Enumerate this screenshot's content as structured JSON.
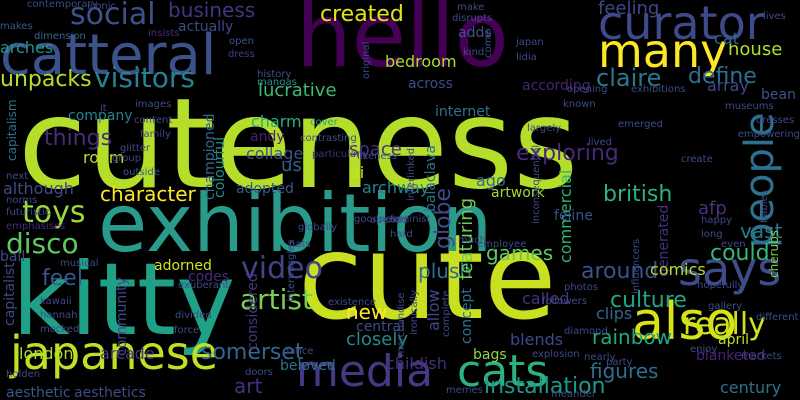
{
  "background": "#000000",
  "palette": [
    "#440154",
    "#3b528b",
    "#21918c",
    "#5ec962",
    "#fde725"
  ],
  "words": [
    {
      "text": "cuteness",
      "color": "#b5de2b"
    },
    {
      "text": "cute",
      "color": "#c8e020"
    },
    {
      "text": "kitty",
      "color": "#1fa187"
    },
    {
      "text": "hello",
      "color": "#440154"
    },
    {
      "text": "exhibition",
      "color": "#2a9b8a"
    },
    {
      "text": "catteral",
      "color": "#3b528b"
    },
    {
      "text": "japanese",
      "color": "#c2df23"
    },
    {
      "text": "many",
      "color": "#fde725"
    },
    {
      "text": "curator",
      "color": "#3e4a89"
    },
    {
      "text": "media",
      "color": "#443983"
    },
    {
      "text": "people",
      "color": "#2c728e"
    },
    {
      "text": "cats",
      "color": "#2db27d"
    },
    {
      "text": "says",
      "color": "#3e4c8a"
    },
    {
      "text": "also",
      "color": "#d8e219"
    },
    {
      "text": "really",
      "color": "#cde11d"
    },
    {
      "text": "video",
      "color": "#414487"
    },
    {
      "text": "toys",
      "color": "#9dd93b"
    },
    {
      "text": "artist",
      "color": "#7ad151"
    },
    {
      "text": "social",
      "color": "#3b528b"
    },
    {
      "text": "visitors",
      "color": "#26828e"
    },
    {
      "text": "created",
      "color": "#e5e419"
    },
    {
      "text": "claire",
      "color": "#2a788e"
    },
    {
      "text": "culture",
      "color": "#21a685"
    },
    {
      "text": "disco",
      "color": "#5ec962"
    },
    {
      "text": "british",
      "color": "#2db27d"
    },
    {
      "text": "could",
      "color": "#35b779"
    },
    {
      "text": "exploring",
      "color": "#482979"
    },
    {
      "text": "around",
      "color": "#3b528b"
    },
    {
      "text": "somerset",
      "color": "#31688e"
    },
    {
      "text": "define",
      "color": "#2c728e"
    },
    {
      "text": "character",
      "color": "#fde725"
    },
    {
      "text": "installation",
      "color": "#1f988b"
    },
    {
      "text": "business",
      "color": "#46327e"
    },
    {
      "text": "things",
      "color": "#472c7a"
    },
    {
      "text": "feeling",
      "color": "#404688"
    },
    {
      "text": "house",
      "color": "#b0dd2f"
    },
    {
      "text": "figures",
      "color": "#2e6f8e"
    },
    {
      "text": "games",
      "color": "#5ec962"
    },
    {
      "text": "rainbow",
      "color": "#22a884"
    },
    {
      "text": "plush",
      "color": "#2e6e8e"
    },
    {
      "text": "feel",
      "color": "#38588c"
    },
    {
      "text": "lucrative",
      "color": "#3dbc74"
    },
    {
      "text": "internet",
      "color": "#2c728e"
    },
    {
      "text": "across",
      "color": "#3e4a89"
    },
    {
      "text": "according",
      "color": "#482475"
    },
    {
      "text": "vast",
      "color": "#2a788e"
    },
    {
      "text": "new",
      "color": "#fde725"
    },
    {
      "text": "art",
      "color": "#46307e"
    },
    {
      "text": "globe",
      "color": "#3f4889"
    },
    {
      "text": "featuring",
      "color": "#6ccd5a"
    },
    {
      "text": "commercial",
      "color": "#2fb47c"
    },
    {
      "text": "artwork",
      "color": "#9fda3a"
    },
    {
      "text": "feline",
      "color": "#3b528b"
    },
    {
      "text": "space",
      "color": "#46327e"
    },
    {
      "text": "room",
      "color": "#b8de29"
    },
    {
      "text": "company",
      "color": "#26828e"
    },
    {
      "text": "charm",
      "color": "#27ad81"
    },
    {
      "text": "collage",
      "color": "#3b528b"
    },
    {
      "text": "andy",
      "color": "#482071"
    },
    {
      "text": "ai",
      "color": "#cae11f"
    },
    {
      "text": "us",
      "color": "#34618d"
    },
    {
      "text": "archway",
      "color": "#24878e"
    },
    {
      "text": "ago",
      "color": "#31688e"
    },
    {
      "text": "afp",
      "color": "#46327e"
    },
    {
      "text": "adopted",
      "color": "#38588c"
    },
    {
      "text": "generated",
      "color": "#46307e"
    },
    {
      "text": "bedroom",
      "color": "#addc30"
    },
    {
      "text": "adds",
      "color": "#3b528b"
    },
    {
      "text": "array",
      "color": "#3e4a89"
    },
    {
      "text": "bean",
      "color": "#3b528b"
    },
    {
      "text": "championed",
      "color": "#31688e"
    },
    {
      "text": "colourful",
      "color": "#21918c"
    },
    {
      "text": "unpacks",
      "color": "#b5de2b"
    },
    {
      "text": "capitalism",
      "color": "#2c728e"
    },
    {
      "text": "capitalist",
      "color": "#3e4a89"
    },
    {
      "text": "although",
      "color": "#3e4a89"
    },
    {
      "text": "london",
      "color": "#aadc32"
    },
    {
      "text": "arcade",
      "color": "#443983"
    },
    {
      "text": "codes",
      "color": "#472a7a"
    },
    {
      "text": "community",
      "color": "#3e4a89"
    },
    {
      "text": "considered",
      "color": "#443983"
    },
    {
      "text": "beloved",
      "color": "#2c728e"
    },
    {
      "text": "central",
      "color": "#3e4a89"
    },
    {
      "text": "closely",
      "color": "#23898e"
    },
    {
      "text": "allow",
      "color": "#3f4889"
    },
    {
      "text": "concept",
      "color": "#2c728e"
    },
    {
      "text": "called",
      "color": "#46327e"
    },
    {
      "text": "clips",
      "color": "#31688e"
    },
    {
      "text": "comics",
      "color": "#b5de2b"
    },
    {
      "text": "blends",
      "color": "#3e4a89"
    },
    {
      "text": "bags",
      "color": "#8fd744"
    },
    {
      "text": "childish",
      "color": "#472f7d"
    },
    {
      "text": "blanketed",
      "color": "#482475"
    },
    {
      "text": "century",
      "color": "#2c728e"
    },
    {
      "text": "april",
      "color": "#b8de29"
    },
    {
      "text": "aesthetic",
      "color": "#38588c"
    },
    {
      "text": "aesthetics",
      "color": "#3e4a89"
    },
    {
      "text": "adorned",
      "color": "#d5e21a"
    },
    {
      "text": "ball",
      "color": "#3e4a89"
    },
    {
      "text": "balaclava",
      "color": "#2c728e"
    },
    {
      "text": "cat",
      "color": "#31688e"
    },
    {
      "text": "arches",
      "color": "#1f958b"
    },
    {
      "text": "actually",
      "color": "#3e4a89"
    },
    {
      "text": "contemporary",
      "color": "#3e4a89"
    },
    {
      "text": "iconic",
      "color": "#3e4a89"
    },
    {
      "text": "makes",
      "color": "#38588c"
    },
    {
      "text": "dimension",
      "color": "#31688e"
    },
    {
      "text": "insists",
      "color": "#472c7a"
    },
    {
      "text": "open",
      "color": "#3b528b"
    },
    {
      "text": "dress",
      "color": "#433e85"
    },
    {
      "text": "history",
      "color": "#3b528b"
    },
    {
      "text": "mangas",
      "color": "#21918c"
    },
    {
      "text": "cover",
      "color": "#1fa187"
    },
    {
      "text": "contrasting",
      "color": "#3b528b"
    },
    {
      "text": "particularly",
      "color": "#46327e"
    },
    {
      "text": "content",
      "color": "#3e4a89"
    },
    {
      "text": "family",
      "color": "#3e4a89"
    },
    {
      "text": "glitter",
      "color": "#3e4a89"
    },
    {
      "text": "group",
      "color": "#3e4a89"
    },
    {
      "text": "images",
      "color": "#3e4a89"
    },
    {
      "text": "it",
      "color": "#3e4a89"
    },
    {
      "text": "outside",
      "color": "#38588c"
    },
    {
      "text": "likeness",
      "color": "#3e4a89"
    },
    {
      "text": "goodness",
      "color": "#3e4a89"
    },
    {
      "text": "globally",
      "color": "#3e4a89"
    },
    {
      "text": "hats",
      "color": "#3e4a89"
    },
    {
      "text": "emphasises",
      "color": "#472c7a"
    },
    {
      "text": "futuristic",
      "color": "#3e4a89"
    },
    {
      "text": "norms",
      "color": "#3e4a89"
    },
    {
      "text": "next",
      "color": "#3e4a89"
    },
    {
      "text": "musical",
      "color": "#3e4a89"
    },
    {
      "text": "exuberant",
      "color": "#3e4a89"
    },
    {
      "text": "kawaii",
      "color": "#3e4a89"
    },
    {
      "text": "hannah",
      "color": "#3e4a89"
    },
    {
      "text": "mocked",
      "color": "#3e4a89"
    },
    {
      "text": "divided",
      "color": "#3e4a89"
    },
    {
      "text": "force",
      "color": "#3e4a89"
    },
    {
      "text": "doors",
      "color": "#3e4a89"
    },
    {
      "text": "dance",
      "color": "#3e4a89"
    },
    {
      "text": "existence",
      "color": "#3e4a89"
    },
    {
      "text": "merchandise",
      "color": "#3e4a89"
    },
    {
      "text": "ironically",
      "color": "#3e4a89"
    },
    {
      "text": "hard",
      "color": "#3e4a89"
    },
    {
      "text": "feminist",
      "color": "#3e4a89"
    },
    {
      "text": "opened",
      "color": "#3e4a89"
    },
    {
      "text": "complete",
      "color": "#3e4a89"
    },
    {
      "text": "much",
      "color": "#3e4a89"
    },
    {
      "text": "employee",
      "color": "#3e4a89"
    },
    {
      "text": "memes",
      "color": "#3e4a89"
    },
    {
      "text": "meander",
      "color": "#3e4a89"
    },
    {
      "text": "party",
      "color": "#3e4a89"
    },
    {
      "text": "nearly",
      "color": "#3e4a89"
    },
    {
      "text": "enjoy",
      "color": "#3e4a89"
    },
    {
      "text": "markets",
      "color": "#3e4a89"
    },
    {
      "text": "different",
      "color": "#3e4a89"
    },
    {
      "text": "cherubs",
      "color": "#7ad151"
    },
    {
      "text": "holden",
      "color": "#3e4a89"
    },
    {
      "text": "explosion",
      "color": "#3e4a89"
    },
    {
      "text": "followers",
      "color": "#3e4a89"
    },
    {
      "text": "photos",
      "color": "#3e4a89"
    },
    {
      "text": "diamond",
      "color": "#3e4a89"
    },
    {
      "text": "influencers",
      "color": "#3e4a89"
    },
    {
      "text": "gallery",
      "color": "#3e4a89"
    },
    {
      "text": "hopefully",
      "color": "#3e4a89"
    },
    {
      "text": "even",
      "color": "#3e4a89"
    },
    {
      "text": "happy",
      "color": "#3e4a89"
    },
    {
      "text": "long",
      "color": "#3e4a89"
    },
    {
      "text": "babies",
      "color": "#3e4a89"
    },
    {
      "text": "dresses",
      "color": "#3e4a89"
    },
    {
      "text": "empowering",
      "color": "#3e4a89"
    },
    {
      "text": "create",
      "color": "#3e4a89"
    },
    {
      "text": "known",
      "color": "#3e4a89"
    },
    {
      "text": "emerged",
      "color": "#3e4a89"
    },
    {
      "text": "lived",
      "color": "#3e4a89"
    },
    {
      "text": "largely",
      "color": "#3e4a89"
    },
    {
      "text": "inconsequential",
      "color": "#3e4a89"
    },
    {
      "text": "interlinked",
      "color": "#3e4a89"
    },
    {
      "text": "intermingles",
      "color": "#3e4a89"
    },
    {
      "text": "original",
      "color": "#3e4a89"
    },
    {
      "text": "disrupts",
      "color": "#3e4a89"
    },
    {
      "text": "make",
      "color": "#3e4a89"
    },
    {
      "text": "kind",
      "color": "#3e4a89"
    },
    {
      "text": "come",
      "color": "#3e4a89"
    },
    {
      "text": "japan",
      "color": "#3e4a89"
    },
    {
      "text": "lidia",
      "color": "#3e4a89"
    },
    {
      "text": "opening",
      "color": "#3e4a89"
    },
    {
      "text": "exhibitions",
      "color": "#3e4a89"
    },
    {
      "text": "museums",
      "color": "#3e4a89"
    },
    {
      "text": "lives",
      "color": "#3e4a89"
    }
  ]
}
